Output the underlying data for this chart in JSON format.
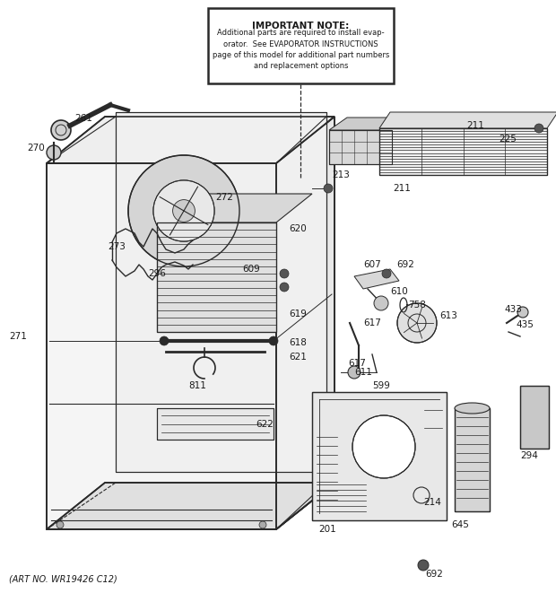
{
  "background_color": "#ffffff",
  "art_no": "(ART NO. WR19426 C12)",
  "important_note_title": "IMPORTANT NOTE:",
  "important_note_body": "Additional parts are required to install evap-\norator.  See EVAPORATOR INSTRUCTIONS\npage of this model for additional part numbers\nand replacement options",
  "line_color": "#2a2a2a",
  "label_color": "#1a1a1a"
}
